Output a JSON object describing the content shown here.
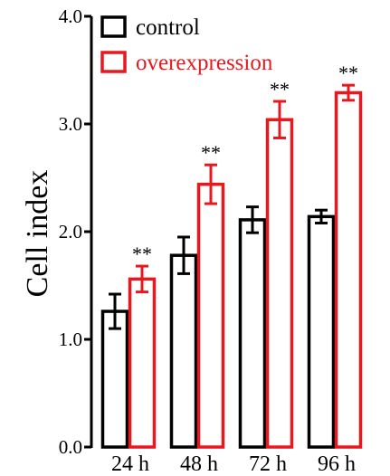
{
  "chart_data": {
    "type": "bar",
    "title": "",
    "xlabel": "",
    "ylabel": "Cell index",
    "ylim": [
      0,
      4
    ],
    "yticks": [
      "0.0",
      "1.0",
      "2.0",
      "3.0",
      "4.0"
    ],
    "categories": [
      "24 h",
      "48 h",
      "72 h",
      "96 h"
    ],
    "legend_position": "top-left",
    "grid": false,
    "series": [
      {
        "name": "control",
        "color": "#000000",
        "values": [
          1.26,
          1.78,
          2.11,
          2.14
        ],
        "errors": [
          0.16,
          0.17,
          0.12,
          0.06
        ],
        "annotations": [
          "",
          "",
          "",
          ""
        ]
      },
      {
        "name": "overexpression",
        "color": "#e8191e",
        "values": [
          1.56,
          2.44,
          3.04,
          3.29
        ],
        "errors": [
          0.12,
          0.18,
          0.17,
          0.07
        ],
        "annotations": [
          "**",
          "**",
          "**",
          "**"
        ]
      }
    ]
  }
}
